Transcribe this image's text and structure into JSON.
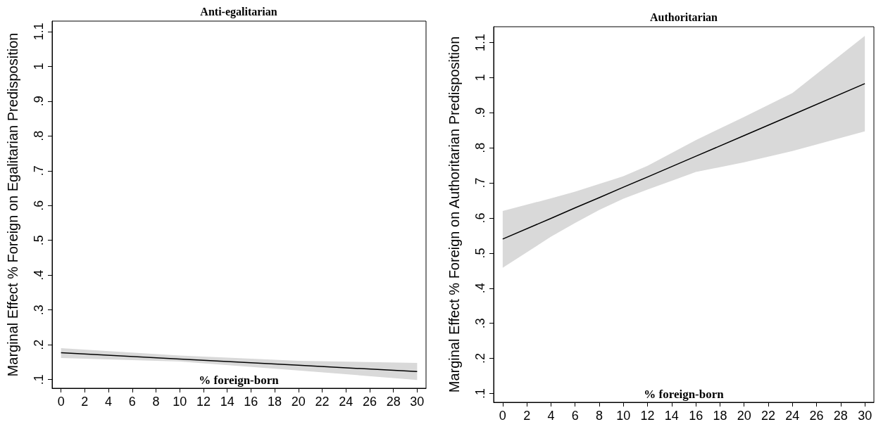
{
  "chart_data": [
    {
      "type": "line",
      "title": "Anti-egalitarian",
      "xlabel": "% foreign-born",
      "ylabel": "Marginal Effect % Foreign on Egalitarian Predisposition",
      "xlim": [
        -0.75,
        30.75
      ],
      "xticks": [
        0,
        2,
        4,
        6,
        8,
        10,
        12,
        14,
        16,
        18,
        20,
        22,
        24,
        26,
        28,
        30
      ],
      "ylim": [
        0.075,
        1.13
      ],
      "yticks": [
        {
          "value": 0.1,
          "label": ".1"
        },
        {
          "value": 0.2,
          "label": ".2"
        },
        {
          "value": 0.3,
          "label": ".3"
        },
        {
          "value": 0.4,
          "label": ".4"
        },
        {
          "value": 0.5,
          "label": ".5"
        },
        {
          "value": 0.6,
          "label": ".6"
        },
        {
          "value": 0.7,
          "label": ".7"
        },
        {
          "value": 0.8,
          "label": ".8"
        },
        {
          "value": 0.9,
          "label": ".9"
        },
        {
          "value": 1,
          "label": "1"
        },
        {
          "value": 1.1,
          "label": "1.1"
        }
      ],
      "series": [
        {
          "color": "#000000",
          "x": [
            0,
            10,
            20,
            30
          ],
          "values": [
            0.177,
            0.159,
            0.141,
            0.123
          ],
          "lower": [
            0.162,
            0.152,
            0.126,
            0.099
          ],
          "upper": [
            0.19,
            0.169,
            0.154,
            0.148
          ]
        }
      ]
    },
    {
      "type": "line",
      "title": "Authoritarian",
      "xlabel": "% foreign-born",
      "ylabel": "Marginal Effect % Foreign on Authoritarian Predisposition",
      "xlim": [
        -0.75,
        30.75
      ],
      "xticks": [
        0,
        2,
        4,
        6,
        8,
        10,
        12,
        14,
        16,
        18,
        20,
        22,
        24,
        26,
        28,
        30
      ],
      "ylim": [
        0.075,
        1.145
      ],
      "yticks": [
        {
          "value": 0.1,
          "label": ".1"
        },
        {
          "value": 0.2,
          "label": ".2"
        },
        {
          "value": 0.3,
          "label": ".3"
        },
        {
          "value": 0.4,
          "label": ".4"
        },
        {
          "value": 0.5,
          "label": ".5"
        },
        {
          "value": 0.6,
          "label": ".6"
        },
        {
          "value": 0.7,
          "label": ".7"
        },
        {
          "value": 0.8,
          "label": ".8"
        },
        {
          "value": 0.9,
          "label": ".9"
        },
        {
          "value": 1,
          "label": "1"
        },
        {
          "value": 1.1,
          "label": "1.1"
        }
      ],
      "series": [
        {
          "color": "#000000",
          "x": [
            0,
            4,
            6,
            8,
            10,
            12,
            16,
            20,
            24,
            30
          ],
          "values": [
            0.54,
            0.599,
            0.629,
            0.658,
            0.688,
            0.717,
            0.776,
            0.835,
            0.894,
            0.983
          ],
          "lower": [
            0.458,
            0.547,
            0.586,
            0.623,
            0.655,
            0.681,
            0.731,
            0.759,
            0.791,
            0.847
          ],
          "upper": [
            0.62,
            0.656,
            0.675,
            0.697,
            0.719,
            0.749,
            0.822,
            0.888,
            0.956,
            1.119
          ]
        }
      ]
    }
  ]
}
